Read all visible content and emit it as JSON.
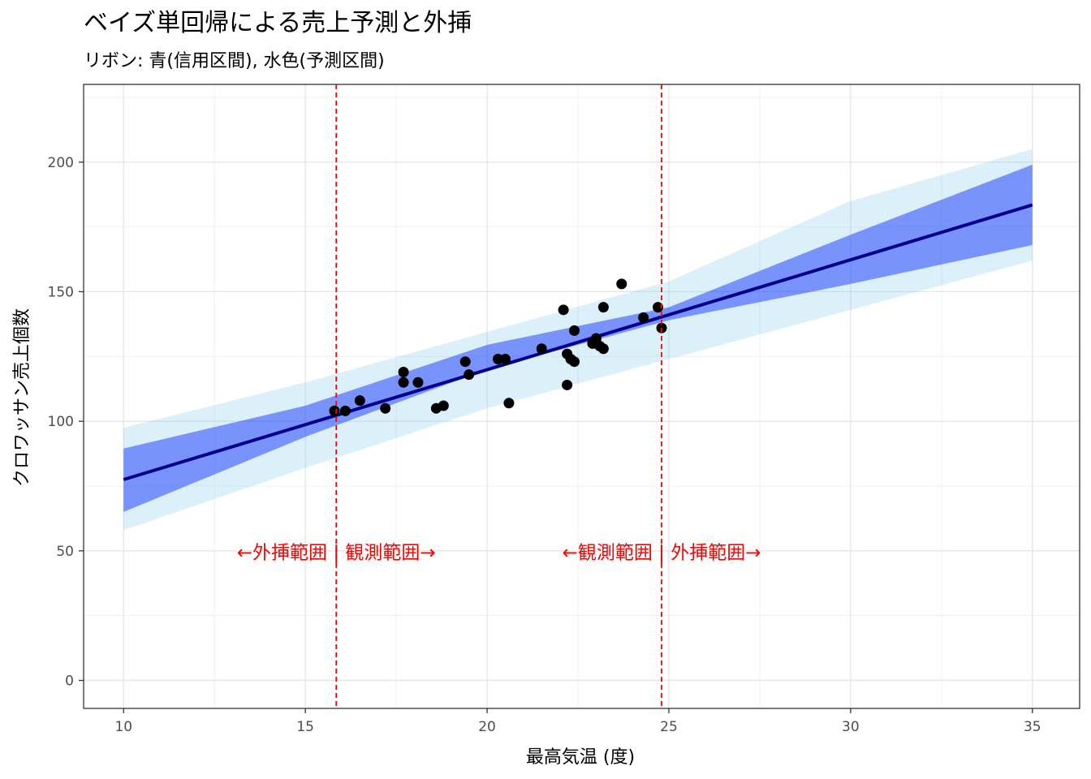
{
  "chart_data": {
    "type": "line",
    "title": "ベイズ単回帰による売上予測と外挿",
    "subtitle": "リボン: 青(信用区間), 水色(予測区間)",
    "xlabel": "最高気温 (度)",
    "ylabel": "クロワッサン売上個数",
    "xlim": [
      8.9,
      36.3
    ],
    "ylim": [
      -10.8,
      230
    ],
    "x_ticks": [
      10,
      15,
      20,
      25,
      30,
      35
    ],
    "y_ticks": [
      0,
      50,
      100,
      150,
      200
    ],
    "x_tick_labels": [
      "10",
      "15",
      "20",
      "25",
      "30",
      "35"
    ],
    "y_tick_labels": [
      "0",
      "50",
      "100",
      "150",
      "200"
    ],
    "grid": true,
    "legend": "none",
    "fit_line": {
      "x": [
        10,
        35
      ],
      "y": [
        77.5,
        183.5
      ],
      "color": "#00008b"
    },
    "credible_interval": {
      "color": "#0022ff",
      "opacity": 0.45,
      "x": [
        10,
        15,
        20,
        25,
        30,
        35
      ],
      "lower": [
        65,
        94,
        120,
        139,
        153,
        168
      ],
      "upper": [
        89.5,
        106,
        129.5,
        144,
        172,
        199
      ]
    },
    "prediction_interval": {
      "color": "#87ceeb",
      "opacity": 0.3,
      "x": [
        10,
        15,
        20,
        25,
        30,
        35
      ],
      "lower": [
        58,
        82,
        105,
        124,
        143,
        162
      ],
      "upper": [
        97.5,
        115,
        134.5,
        154,
        185,
        205
      ]
    },
    "points": {
      "color": "#000000",
      "x": [
        15.8,
        16.1,
        16.5,
        17.2,
        17.7,
        17.7,
        18.1,
        18.6,
        18.8,
        19.4,
        19.5,
        20.3,
        20.5,
        20.6,
        21.5,
        22.1,
        22.2,
        22.2,
        22.3,
        22.4,
        22.4,
        22.9,
        23.0,
        23.0,
        23.1,
        23.2,
        23.2,
        23.7,
        24.3,
        24.7,
        24.8
      ],
      "y": [
        104,
        104,
        108,
        105,
        115,
        119,
        115,
        105,
        106,
        123,
        118,
        124,
        124,
        107,
        128,
        143,
        114,
        126,
        124,
        123,
        135,
        130,
        132,
        130,
        129,
        128,
        144,
        153,
        140,
        144,
        136
      ]
    },
    "vlines": {
      "x": [
        15.85,
        24.8
      ],
      "color": "#ff0000",
      "style": "dashed"
    },
    "annotations": [
      {
        "text": "←外挿範囲 | 観測範囲→",
        "x": 15.85,
        "y": 49.5,
        "color": "#ff0000"
      },
      {
        "text": "←観測範囲 | 外挿範囲→",
        "x": 24.8,
        "y": 49.5,
        "color": "#ff0000"
      }
    ]
  }
}
